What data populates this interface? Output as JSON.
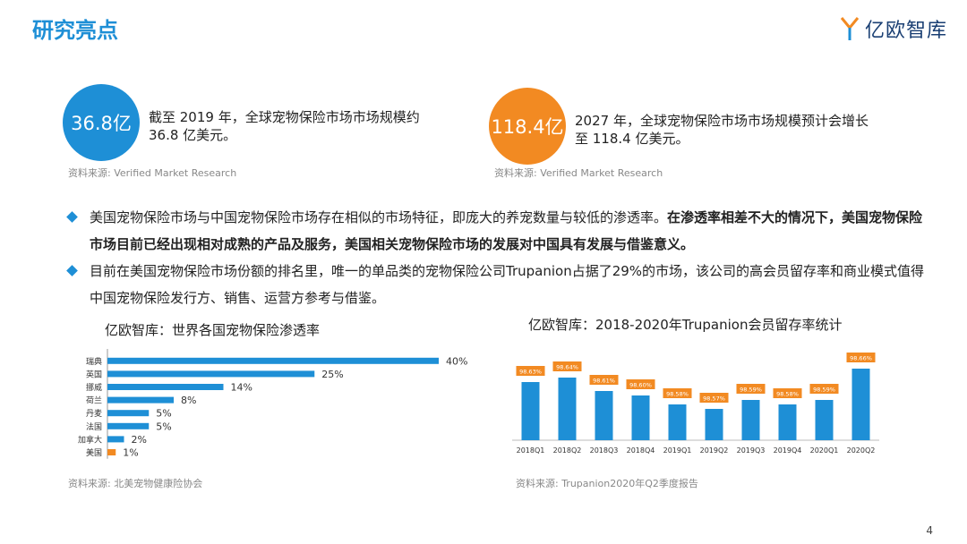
{
  "header": {
    "title": "研究亮点",
    "logo_text": "亿欧智库"
  },
  "stats": [
    {
      "value": "36.8亿",
      "text": "截至 2019 年，全球宠物保险市场市场规模约 36.8 亿美元。",
      "source": "资料来源: Verified Market Research",
      "color": "#1e8fd6"
    },
    {
      "value": "118.4亿",
      "text": "2027 年，全球宠物保险市场市场规模预计会增长至 118.4 亿美元。",
      "source": "资料来源: Verified Market Research",
      "color": "#f28a22"
    }
  ],
  "bullets": [
    {
      "normal": "美国宠物保险市场与中国宠物保险市场存在相似的市场特征，即庞大的养宠数量与较低的渗透率。",
      "bold": "在渗透率相差不大的情况下，美国宠物保险市场目前已经出现相对成熟的产品及服务，美国相关宠物保险市场的发展对中国具有发展与借鉴意义。"
    },
    {
      "normal": "目前在美国宠物保险市场份额的排名里，唯一的单品类的宠物保险公司Trupanion占据了29%的市场，该公司的高会员留存率和商业模式值得中国宠物保险发行方、销售、运营方参考与借鉴。",
      "bold": ""
    }
  ],
  "chart_data": [
    {
      "type": "bar",
      "orientation": "horizontal",
      "title": "亿欧智库：世界各国宠物保险渗透率",
      "categories": [
        "瑞典",
        "英国",
        "挪威",
        "荷兰",
        "丹麦",
        "法国",
        "加拿大",
        "美国"
      ],
      "values": [
        40,
        25,
        14,
        8,
        5,
        5,
        2,
        1
      ],
      "labels": [
        "40%",
        "25%",
        "14%",
        "8%",
        "5%",
        "5%",
        "2%",
        "1%"
      ],
      "colors": [
        "#1e8fd6",
        "#1e8fd6",
        "#1e8fd6",
        "#1e8fd6",
        "#1e8fd6",
        "#1e8fd6",
        "#1e8fd6",
        "#f28a22"
      ],
      "source": "资料来源: 北美宠物健康险协会"
    },
    {
      "type": "bar",
      "title": "亿欧智库：2018-2020年Trupanion会员留存率统计",
      "categories": [
        "2018Q1",
        "2018Q2",
        "2018Q3",
        "2018Q4",
        "2019Q1",
        "2019Q2",
        "2019Q3",
        "2019Q4",
        "2020Q1",
        "2020Q2"
      ],
      "values": [
        98.63,
        98.64,
        98.61,
        98.6,
        98.58,
        98.57,
        98.59,
        98.58,
        98.59,
        98.66
      ],
      "labels": [
        "98.63%",
        "98.64%",
        "98.61%",
        "98.60%",
        "98.58%",
        "98.57%",
        "98.59%",
        "98.58%",
        "98.59%",
        "98.66%"
      ],
      "bar_color": "#1e8fd6",
      "label_color": "#f28a22",
      "source": "资料来源: Trupanion2020年Q2季度报告"
    }
  ],
  "page_number": "4"
}
